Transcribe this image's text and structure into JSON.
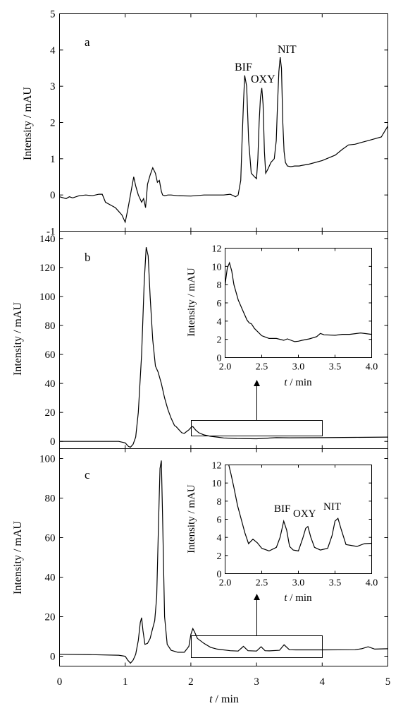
{
  "x_axis": {
    "label_italic": "t",
    "label_rest": " / min",
    "ticks": [
      "0",
      "1",
      "2",
      "3",
      "4",
      "5"
    ]
  },
  "chart_data": [
    {
      "type": "line",
      "panel": "a",
      "xlim": [
        0,
        5
      ],
      "ylim": [
        -1,
        5
      ],
      "ylabel": "Intensity / mAU",
      "yticks": [
        "-1",
        "0",
        "1",
        "2",
        "3",
        "4",
        "5"
      ],
      "annotations": [
        "BIF",
        "OXY",
        "NIT"
      ],
      "x": [
        0,
        0.1,
        0.15,
        0.2,
        0.3,
        0.4,
        0.5,
        0.6,
        0.65,
        0.7,
        0.8,
        0.85,
        0.9,
        0.95,
        1.0,
        1.04,
        1.07,
        1.1,
        1.13,
        1.16,
        1.2,
        1.25,
        1.28,
        1.31,
        1.34,
        1.38,
        1.42,
        1.46,
        1.49,
        1.52,
        1.55,
        1.57,
        1.6,
        1.65,
        1.7,
        1.8,
        2.0,
        2.2,
        2.4,
        2.5,
        2.6,
        2.68,
        2.72,
        2.76,
        2.78,
        2.8,
        2.82,
        2.85,
        2.88,
        2.92,
        2.97,
        3.0,
        3.02,
        3.04,
        3.06,
        3.08,
        3.1,
        3.12,
        3.14,
        3.17,
        3.22,
        3.27,
        3.3,
        3.32,
        3.34,
        3.36,
        3.38,
        3.4,
        3.42,
        3.44,
        3.47,
        3.52,
        3.58,
        3.65,
        3.7,
        3.8,
        4.0,
        4.2,
        4.3,
        4.4,
        4.5,
        4.6,
        4.7,
        4.8,
        4.9,
        4.95,
        5.0
      ],
      "values": [
        -0.05,
        -0.1,
        -0.05,
        -0.08,
        -0.02,
        0.0,
        -0.02,
        0.02,
        0.02,
        -0.2,
        -0.3,
        -0.35,
        -0.45,
        -0.55,
        -0.75,
        -0.4,
        -0.1,
        0.2,
        0.5,
        0.25,
        0.0,
        -0.2,
        -0.1,
        -0.35,
        0.3,
        0.55,
        0.75,
        0.6,
        0.35,
        0.4,
        0.1,
        0.0,
        -0.02,
        0.0,
        0.0,
        -0.02,
        -0.03,
        0.0,
        0.0,
        0.0,
        0.02,
        -0.05,
        0.0,
        0.4,
        1.5,
        2.5,
        3.3,
        3.0,
        1.5,
        0.6,
        0.5,
        0.45,
        1.0,
        2.0,
        2.7,
        2.95,
        2.5,
        1.2,
        0.6,
        0.7,
        0.9,
        1.0,
        1.5,
        2.5,
        3.4,
        3.8,
        3.5,
        2.0,
        1.2,
        0.9,
        0.8,
        0.78,
        0.8,
        0.8,
        0.82,
        0.85,
        0.95,
        1.1,
        1.25,
        1.38,
        1.4,
        1.45,
        1.5,
        1.55,
        1.6,
        1.75,
        1.9
      ]
    },
    {
      "type": "line",
      "panel": "b",
      "xlim": [
        0,
        5
      ],
      "ylim": [
        -5,
        145
      ],
      "ylabel": "Intensity / mAU",
      "yticks": [
        "0",
        "20",
        "40",
        "60",
        "80",
        "100",
        "120",
        "140"
      ],
      "x": [
        0,
        0.5,
        0.9,
        1.0,
        1.05,
        1.08,
        1.12,
        1.16,
        1.2,
        1.25,
        1.29,
        1.32,
        1.35,
        1.38,
        1.42,
        1.46,
        1.5,
        1.55,
        1.6,
        1.65,
        1.7,
        1.75,
        1.78,
        1.82,
        1.86,
        1.9,
        1.94,
        1.97,
        2.0,
        2.03,
        2.07,
        2.12,
        2.2,
        2.3,
        2.4,
        2.5,
        2.7,
        3.0,
        3.3,
        3.5,
        4.0,
        4.5,
        5.0
      ],
      "values": [
        0,
        0,
        0,
        -1,
        -3.5,
        -4,
        -2,
        3,
        20,
        60,
        110,
        134,
        128,
        100,
        70,
        52,
        48,
        40,
        30,
        22,
        16,
        11,
        10,
        8,
        6,
        5.5,
        7,
        8,
        9.5,
        10.3,
        8,
        6,
        4.5,
        3.5,
        3,
        2.4,
        2.0,
        1.8,
        2.6,
        2.5,
        2.6,
        2.8,
        3.0
      ],
      "inset": {
        "xlim": [
          2.0,
          4.0
        ],
        "ylim": [
          0,
          12
        ],
        "ylabel": "Intensity / mAU",
        "xticks": [
          "2.0",
          "2.5",
          "3.0",
          "3.5",
          "4.0"
        ],
        "yticks": [
          "0",
          "2",
          "4",
          "6",
          "8",
          "10",
          "12"
        ],
        "x": [
          2.0,
          2.03,
          2.06,
          2.09,
          2.12,
          2.18,
          2.25,
          2.3,
          2.33,
          2.36,
          2.4,
          2.5,
          2.6,
          2.7,
          2.8,
          2.85,
          2.9,
          2.95,
          3.0,
          3.05,
          3.15,
          3.25,
          3.3,
          3.35,
          3.5,
          3.6,
          3.7,
          3.85,
          4.0
        ],
        "values": [
          8.0,
          9.8,
          10.4,
          9.5,
          8.0,
          6.3,
          5.0,
          4.1,
          3.8,
          3.7,
          3.2,
          2.4,
          2.1,
          2.1,
          1.9,
          2.05,
          1.9,
          1.75,
          1.8,
          1.9,
          2.05,
          2.3,
          2.65,
          2.5,
          2.45,
          2.55,
          2.55,
          2.7,
          2.55
        ]
      }
    },
    {
      "type": "line",
      "panel": "c",
      "xlim": [
        0,
        5
      ],
      "ylim": [
        -5,
        105
      ],
      "ylabel": "Intensity / mAU",
      "yticks": [
        "0",
        "20",
        "40",
        "60",
        "80",
        "100"
      ],
      "x": [
        0,
        0.5,
        0.9,
        1.0,
        1.04,
        1.08,
        1.12,
        1.16,
        1.2,
        1.23,
        1.25,
        1.27,
        1.3,
        1.34,
        1.38,
        1.41,
        1.45,
        1.48,
        1.51,
        1.53,
        1.55,
        1.57,
        1.6,
        1.64,
        1.7,
        1.8,
        1.9,
        1.97,
        2.0,
        2.03,
        2.06,
        2.1,
        2.2,
        2.3,
        2.4,
        2.6,
        2.72,
        2.8,
        2.87,
        3.0,
        3.07,
        3.13,
        3.2,
        3.35,
        3.42,
        3.5,
        3.6,
        3.8,
        4.0,
        4.5,
        4.6,
        4.7,
        4.8,
        5.0
      ],
      "values": [
        1.0,
        0.8,
        0.5,
        0.0,
        -2.0,
        -3.5,
        -2.0,
        1.0,
        8.0,
        17.0,
        19.5,
        13.0,
        6.0,
        6.5,
        9.0,
        13.0,
        18.0,
        30.0,
        70.0,
        95.0,
        99.0,
        70.0,
        20.0,
        6.0,
        3.0,
        2.0,
        2.0,
        5.0,
        11.0,
        14.0,
        12.0,
        9.0,
        6.5,
        4.5,
        3.6,
        2.8,
        2.6,
        5.0,
        2.8,
        2.6,
        4.8,
        2.8,
        2.7,
        3.0,
        5.8,
        3.3,
        3.2,
        3.2,
        3.2,
        3.3,
        3.8,
        4.8,
        3.6,
        3.8
      ],
      "inset": {
        "xlim": [
          2.0,
          4.0
        ],
        "ylim": [
          0,
          12
        ],
        "ylabel": "Intensity / mAU",
        "xticks": [
          "2.0",
          "2.5",
          "3.0",
          "3.5",
          "4.0"
        ],
        "yticks": [
          "0",
          "2",
          "4",
          "6",
          "8",
          "10",
          "12"
        ],
        "annotations": [
          "BIF",
          "OXY",
          "NIT"
        ],
        "x": [
          2.05,
          2.08,
          2.12,
          2.17,
          2.22,
          2.27,
          2.32,
          2.38,
          2.44,
          2.5,
          2.6,
          2.7,
          2.75,
          2.8,
          2.84,
          2.88,
          2.93,
          3.0,
          3.06,
          3.1,
          3.13,
          3.17,
          3.22,
          3.3,
          3.4,
          3.46,
          3.5,
          3.54,
          3.58,
          3.65,
          3.8,
          3.9,
          4.0
        ],
        "values": [
          12.0,
          11.0,
          9.5,
          7.5,
          6.0,
          4.5,
          3.3,
          3.8,
          3.4,
          2.8,
          2.5,
          2.9,
          4.0,
          5.8,
          4.8,
          3.0,
          2.6,
          2.5,
          3.9,
          5.0,
          5.2,
          4.0,
          2.9,
          2.6,
          2.8,
          4.2,
          5.8,
          6.1,
          5.0,
          3.2,
          3.0,
          3.3,
          3.35
        ]
      }
    }
  ]
}
